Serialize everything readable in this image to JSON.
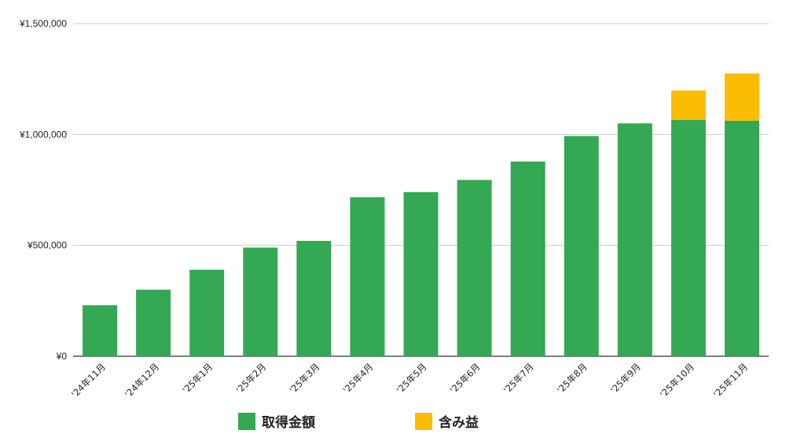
{
  "chart_data": {
    "type": "bar",
    "stacked": true,
    "categories": [
      "'24年11月",
      "'24年12月",
      "'25年1月",
      "'25年2月",
      "'25年3月",
      "'25年4月",
      "'25年5月",
      "'25年6月",
      "'25年7月",
      "'25年8月",
      "'25年9月",
      "'25年10月",
      "'25年11月"
    ],
    "series": [
      {
        "name": "取得金額",
        "color": "#34a853",
        "values": [
          230000,
          300000,
          390000,
          490000,
          520000,
          717000,
          740000,
          795000,
          878000,
          993000,
          1050000,
          1065000,
          1062000
        ]
      },
      {
        "name": "含み益",
        "color": "#fbbc04",
        "values": [
          0,
          0,
          0,
          0,
          0,
          0,
          0,
          0,
          0,
          0,
          0,
          133000,
          213000
        ]
      }
    ],
    "yticks": [
      "¥0",
      "¥500,000",
      "¥1,000,000",
      "¥1,500,000"
    ],
    "ytick_values": [
      0,
      500000,
      1000000,
      1500000
    ],
    "ylim": [
      0,
      1500000
    ],
    "grid": true,
    "legend_position": "bottom"
  }
}
